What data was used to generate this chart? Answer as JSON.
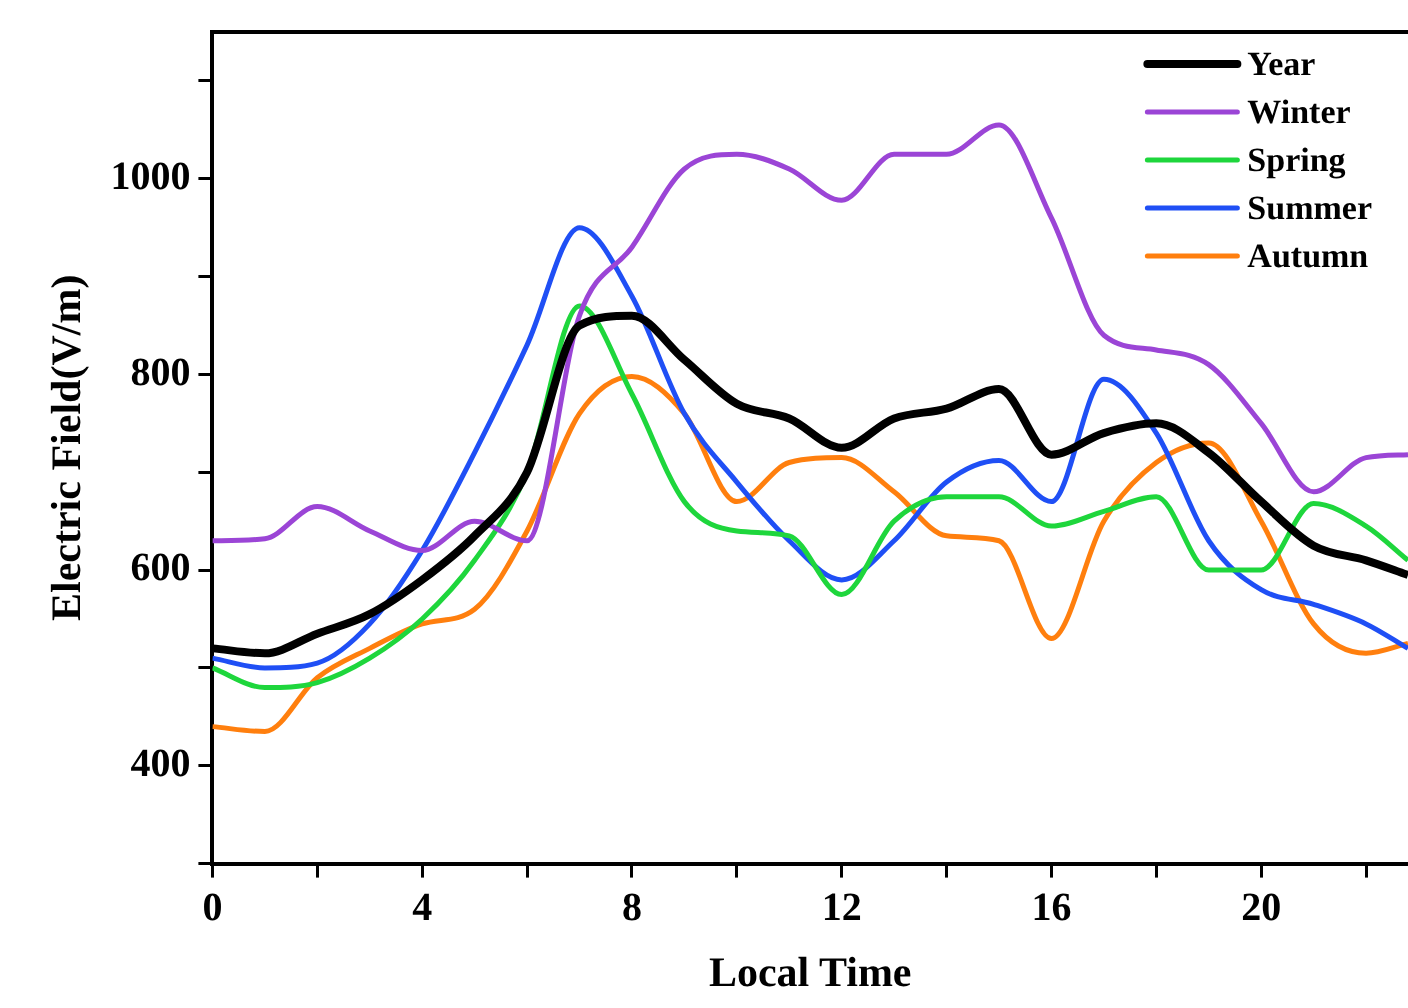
{
  "chart_data": {
    "type": "line",
    "xlabel": "Local Time",
    "ylabel": "Electric Field(V/m)",
    "x": [
      0,
      1,
      2,
      3,
      4,
      5,
      6,
      7,
      8,
      9,
      10,
      11,
      12,
      13,
      14,
      15,
      16,
      17,
      18,
      19,
      20,
      21,
      22,
      22.8
    ],
    "xlim": [
      0,
      22.8
    ],
    "xticks": [
      0,
      {
        "value": 2,
        "label": null
      },
      4,
      {
        "value": 6,
        "label": null
      },
      8,
      {
        "value": 10,
        "label": null
      },
      12,
      {
        "value": 14,
        "label": null
      },
      16,
      {
        "value": 18,
        "label": null
      },
      20,
      {
        "value": 22,
        "label": null
      }
    ],
    "ylim": [
      300,
      1150
    ],
    "yticks": [
      {
        "value": 300,
        "label": null
      },
      400,
      {
        "value": 500,
        "label": null
      },
      600,
      {
        "value": 700,
        "label": null
      },
      800,
      {
        "value": 900,
        "label": null
      },
      1000,
      {
        "value": 1100,
        "label": null
      }
    ],
    "grid": false,
    "legend": "top right",
    "marker": "none",
    "line_style": "solid",
    "series": [
      {
        "name": "Year",
        "color": "#000000",
        "values": [
          520,
          515,
          535,
          555,
          590,
          635,
          700,
          850,
          860,
          815,
          770,
          755,
          725,
          755,
          765,
          785,
          718,
          740,
          750,
          720,
          670,
          625,
          610,
          595
        ]
      },
      {
        "name": "Winter",
        "color": "#9b45d6",
        "values": [
          630,
          632,
          665,
          640,
          620,
          650,
          630,
          860,
          930,
          1010,
          1025,
          1010,
          978,
          1025,
          1025,
          1055,
          960,
          840,
          825,
          810,
          750,
          680,
          715,
          718
        ]
      },
      {
        "name": "Spring",
        "color": "#1ed63c",
        "values": [
          500,
          480,
          485,
          510,
          550,
          610,
          700,
          870,
          780,
          670,
          640,
          635,
          575,
          650,
          675,
          675,
          645,
          660,
          675,
          600,
          600,
          668,
          645,
          610
        ]
      },
      {
        "name": "Summer",
        "color": "#1f4ff5",
        "values": [
          510,
          500,
          505,
          545,
          620,
          720,
          830,
          950,
          880,
          760,
          690,
          630,
          590,
          630,
          690,
          712,
          670,
          795,
          740,
          630,
          580,
          565,
          545,
          520
        ]
      },
      {
        "name": "Autumn",
        "color": "#ff7f0e",
        "values": [
          440,
          435,
          490,
          520,
          545,
          560,
          640,
          760,
          798,
          760,
          670,
          710,
          715,
          680,
          635,
          630,
          530,
          650,
          710,
          730,
          650,
          545,
          515,
          525
        ]
      }
    ]
  }
}
